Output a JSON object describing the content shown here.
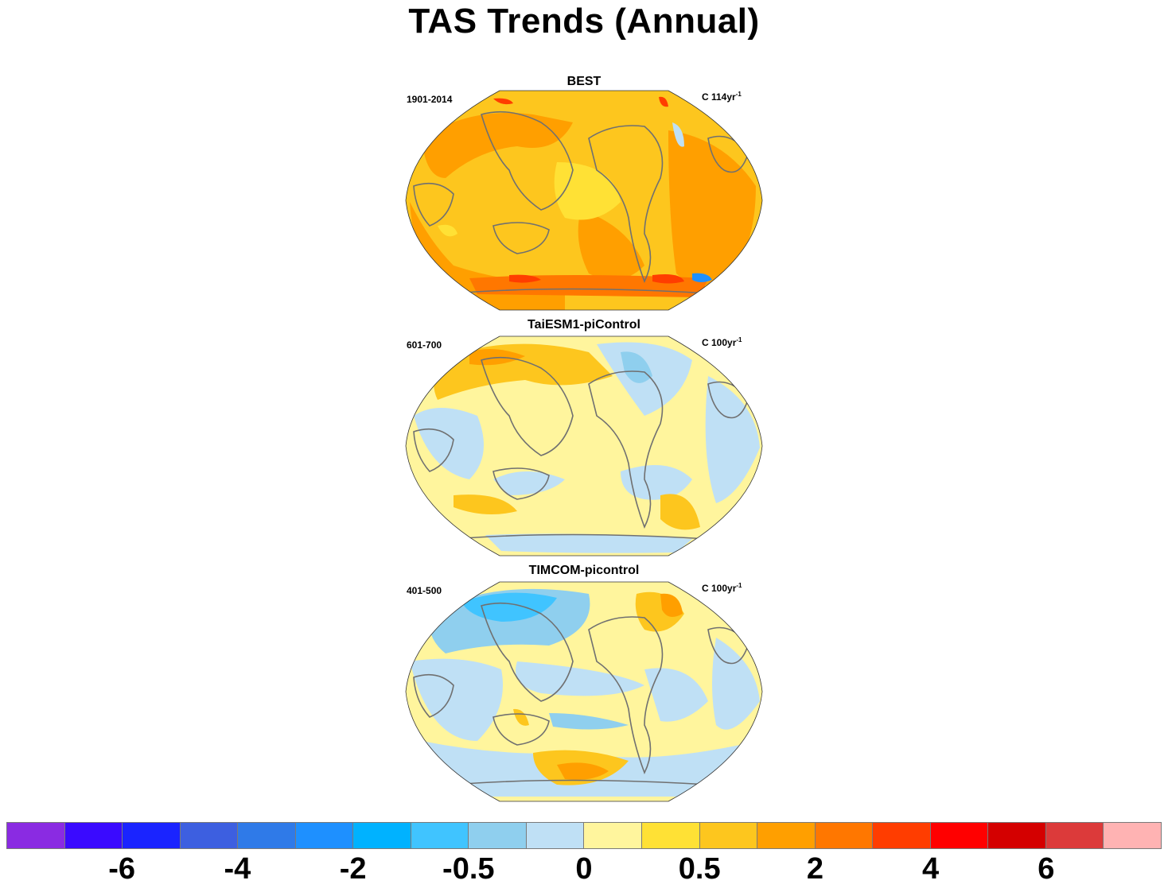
{
  "title": "TAS Trends (Annual)",
  "panels": [
    {
      "name": "BEST",
      "period": "1901-2014",
      "units_base": "C 114yr",
      "units_exp": "-1",
      "theme": "warm"
    },
    {
      "name": "TaiESM1-piControl",
      "period": "601-700",
      "units_base": "C 100yr",
      "units_exp": "-1",
      "theme": "mild"
    },
    {
      "name": "TIMCOM-picontrol",
      "period": "401-500",
      "units_base": "C 100yr",
      "units_exp": "-1",
      "theme": "cool"
    }
  ],
  "colorbar": {
    "colors": [
      "#8a2be2",
      "#3a0aff",
      "#1a24ff",
      "#3d5fe0",
      "#2f7ae8",
      "#1e90ff",
      "#00b2ff",
      "#40c4ff",
      "#8fcfee",
      "#bfe0f5",
      "#fff59d",
      "#ffe135",
      "#fdc61e",
      "#ff9f00",
      "#ff7700",
      "#ff3d00",
      "#ff0000",
      "#d40000",
      "#dc3a3a",
      "#ffb3b3"
    ],
    "labels": [
      {
        "text": "-6",
        "boundary": 2
      },
      {
        "text": "-4",
        "boundary": 4
      },
      {
        "text": "-2",
        "boundary": 6
      },
      {
        "text": "-0.5",
        "boundary": 8
      },
      {
        "text": "0",
        "boundary": 10
      },
      {
        "text": "0.5",
        "boundary": 12
      },
      {
        "text": "2",
        "boundary": 14
      },
      {
        "text": "4",
        "boundary": 16
      },
      {
        "text": "6",
        "boundary": 18
      }
    ]
  }
}
